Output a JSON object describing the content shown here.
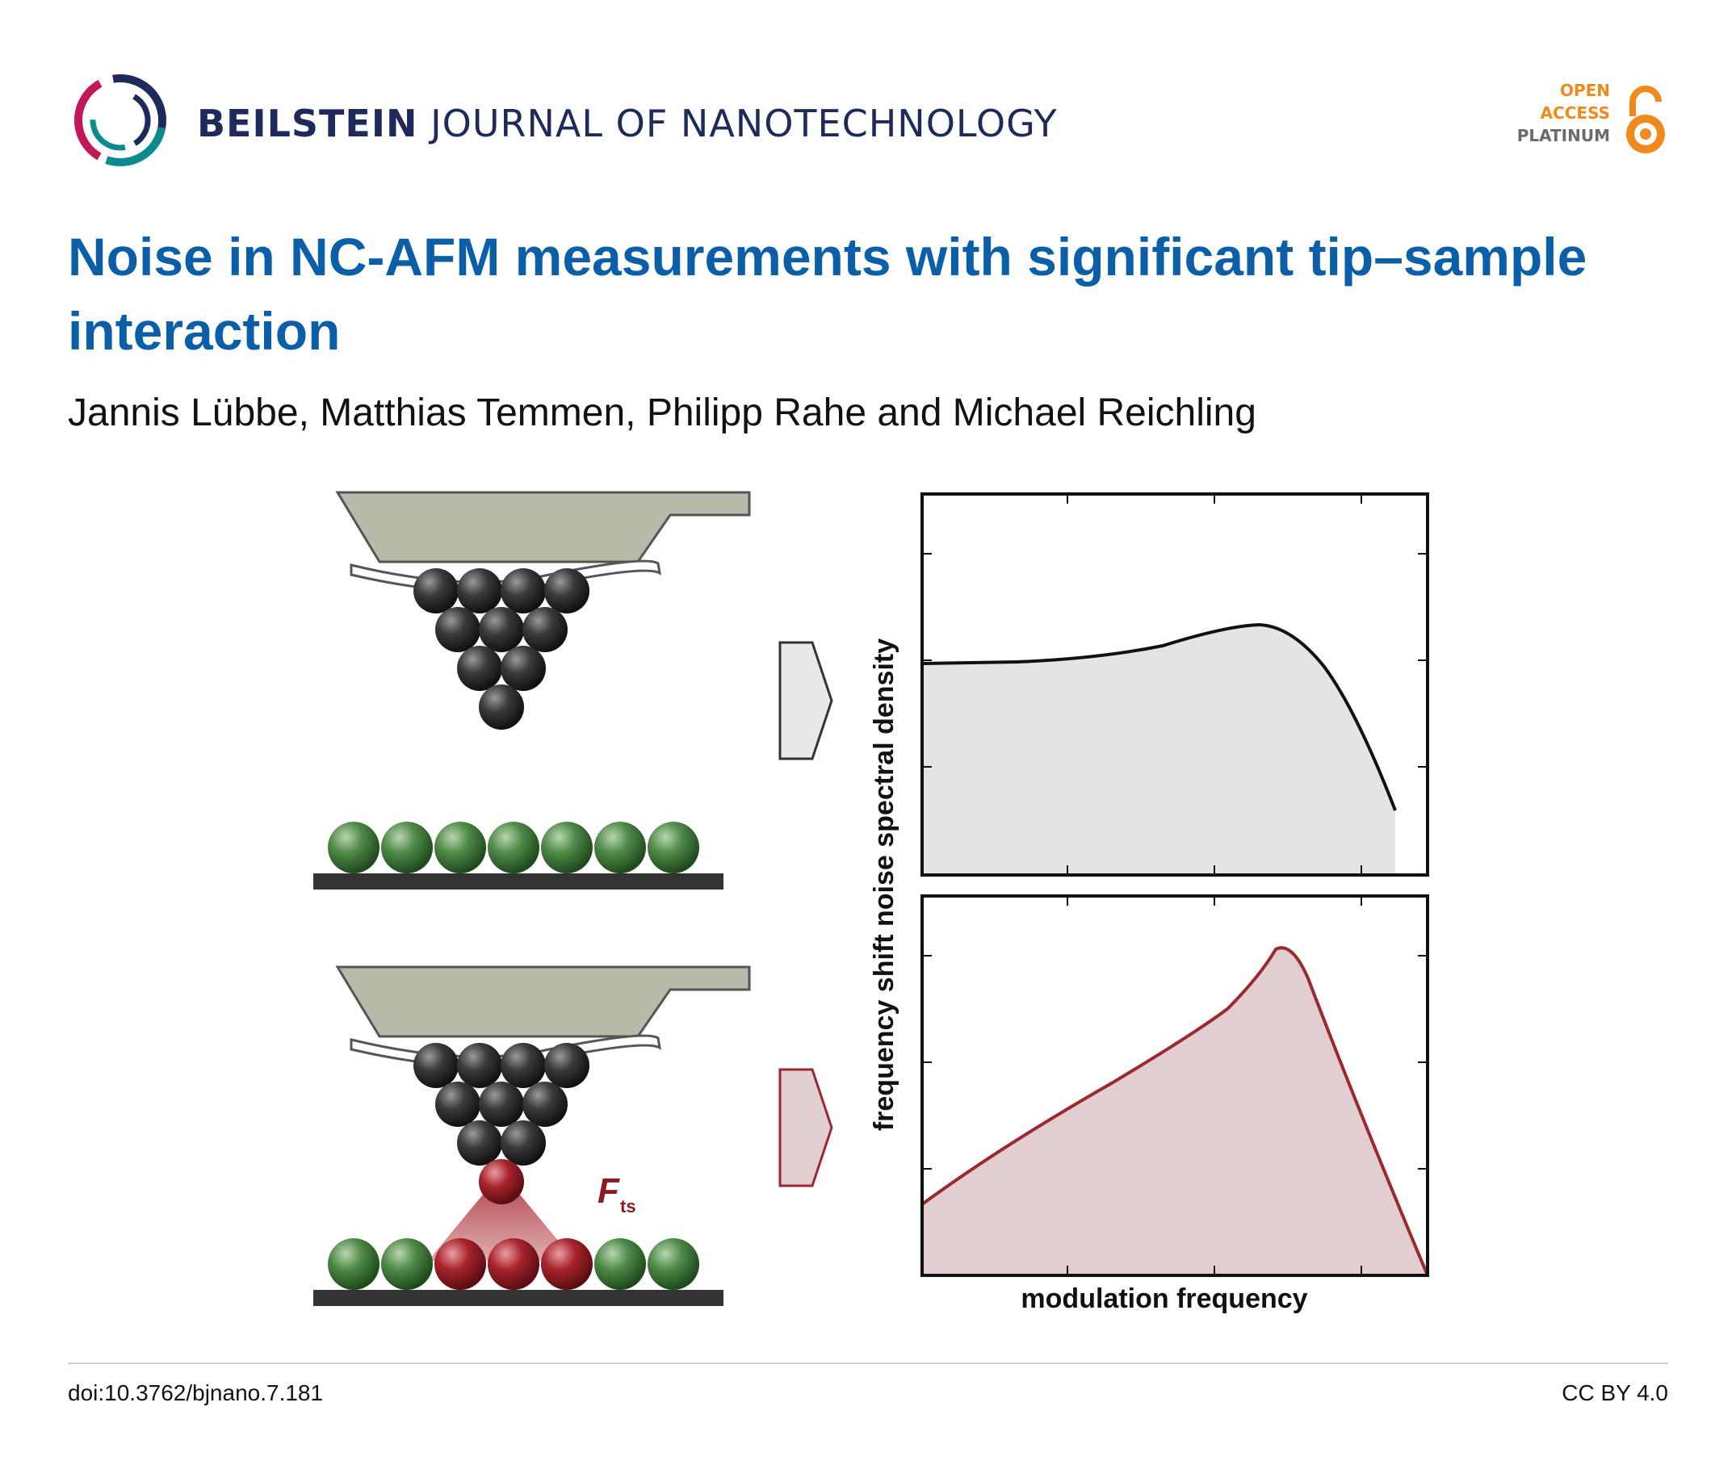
{
  "journal": {
    "bold": "BEILSTEIN",
    "rest": "JOURNAL OF NANOTECHNOLOGY"
  },
  "badge": {
    "line1": "OPEN",
    "line2": "ACCESS",
    "line3": "PLATINUM"
  },
  "title": "Noise in NC-AFM measurements with significant tip–sample interaction",
  "authors": "Jannis Lübbe, Matthias Temmen, Philipp Rahe and Michael Reichling",
  "figure": {
    "force_label": "F",
    "force_subscript": "ts",
    "ylabel": "frequency shift noise spectral density",
    "xlabel": "modulation frequency"
  },
  "footer": {
    "doi": "doi:10.3762/bjnano.7.181",
    "license": "CC BY 4.0"
  },
  "colors": {
    "title": "#0b5fa8",
    "journal": "#1d2a5b",
    "oa_orange": "#f08a1c",
    "sphere_dark": "#2b2b2b",
    "sphere_green": "#3f7a3a",
    "sphere_red": "#9b1b22",
    "cantilever": "#b7bcaa",
    "curve_gray_fill": "#e4e4e4",
    "curve_red": "#9b2a2e",
    "curve_red_fill": "#e2cdd0"
  },
  "icons": [
    "beilstein-logo-icon",
    "open-access-lock-icon",
    "arrow-right-gray-icon",
    "arrow-right-red-icon"
  ]
}
